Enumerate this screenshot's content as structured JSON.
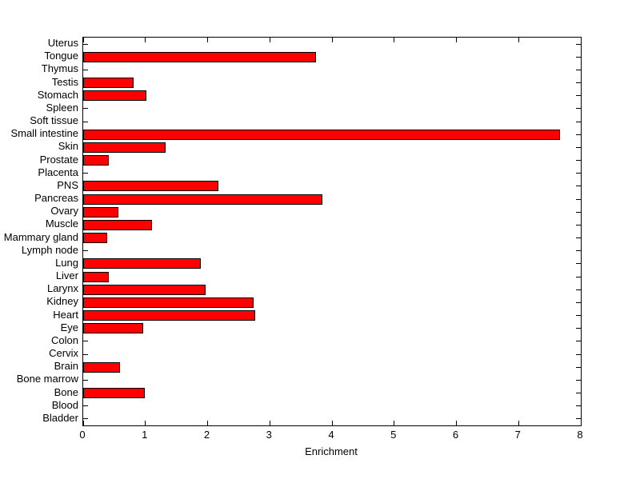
{
  "figure": {
    "background_color": "#FFFFFF"
  },
  "chart_data": {
    "type": "bar",
    "orientation": "horizontal",
    "title": "",
    "xlabel": "Enrichment",
    "ylabel": "",
    "xlim": [
      0,
      8
    ],
    "xticks": [
      0,
      1,
      2,
      3,
      4,
      5,
      6,
      7,
      8
    ],
    "grid": false,
    "legend": null,
    "bar_color": "#FF0000",
    "bar_edge_color": "#000000",
    "axis_color": "#000000",
    "categories_top_to_bottom": [
      "Uterus",
      "Tongue",
      "Thymus",
      "Testis",
      "Stomach",
      "Spleen",
      "Soft tissue",
      "Small intestine",
      "Skin",
      "Prostate",
      "Placenta",
      "PNS",
      "Pancreas",
      "Ovary",
      "Muscle",
      "Mammary gland",
      "Lymph node",
      "Lung",
      "Liver",
      "Larynx",
      "Kidney",
      "Heart",
      "Eye",
      "Colon",
      "Cervix",
      "Brain",
      "Bone marrow",
      "Bone",
      "Blood",
      "Bladder"
    ],
    "values": [
      0,
      3.74,
      0,
      0.81,
      1.02,
      0,
      0,
      7.67,
      1.32,
      0.41,
      0,
      2.17,
      3.85,
      0.57,
      1.1,
      0.39,
      0,
      1.89,
      0.41,
      1.97,
      2.74,
      2.77,
      0.97,
      0,
      0,
      0.59,
      0,
      0.99,
      0,
      0
    ]
  }
}
